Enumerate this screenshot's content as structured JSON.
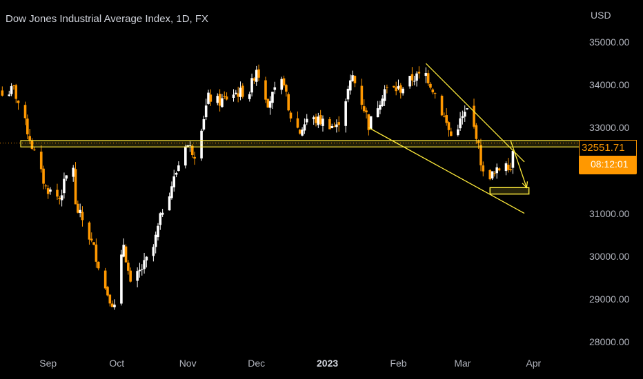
{
  "chart_data": {
    "type": "candlestick",
    "title": "Dow Jones Industrial Average Index, 1D, FX",
    "currency": "USD",
    "y_ticks": [
      "35000.00",
      "34000.00",
      "33000.00",
      "31000.00",
      "30000.00",
      "29000.00",
      "28000.00"
    ],
    "x_ticks": [
      {
        "label": "Sep",
        "date": "2022-09-01",
        "bold": false
      },
      {
        "label": "Oct",
        "date": "2022-10-01",
        "bold": false
      },
      {
        "label": "Nov",
        "date": "2022-11-01",
        "bold": false
      },
      {
        "label": "Dec",
        "date": "2022-12-01",
        "bold": false
      },
      {
        "label": "2023",
        "date": "2023-01-01",
        "bold": true
      },
      {
        "label": "Feb",
        "date": "2023-02-01",
        "bold": false
      },
      {
        "label": "Mar",
        "date": "2023-03-01",
        "bold": false
      },
      {
        "label": "Apr",
        "date": "2023-04-01",
        "bold": false
      }
    ],
    "ylim": [
      27700,
      35700
    ],
    "xlim": [
      "2022-08-11",
      "2023-04-22"
    ],
    "last_price": "32551.71",
    "countdown": "08:12:01",
    "closes": [
      {
        "date": "2022-08-12",
        "close": 33750
      },
      {
        "date": "2022-08-17",
        "close": 33900
      },
      {
        "date": "2022-08-22",
        "close": 33100
      },
      {
        "date": "2022-08-26",
        "close": 32400
      },
      {
        "date": "2022-08-31",
        "close": 31600
      },
      {
        "date": "2022-09-06",
        "close": 31350
      },
      {
        "date": "2022-09-09",
        "close": 31850
      },
      {
        "date": "2022-09-12",
        "close": 32100
      },
      {
        "date": "2022-09-13",
        "close": 31150
      },
      {
        "date": "2022-09-16",
        "close": 30850
      },
      {
        "date": "2022-09-21",
        "close": 30180
      },
      {
        "date": "2022-09-26",
        "close": 29250
      },
      {
        "date": "2022-09-30",
        "close": 28800
      },
      {
        "date": "2022-10-04",
        "close": 30300
      },
      {
        "date": "2022-10-07",
        "close": 29300
      },
      {
        "date": "2022-10-13",
        "close": 29800
      },
      {
        "date": "2022-10-17",
        "close": 30200
      },
      {
        "date": "2022-10-21",
        "close": 31100
      },
      {
        "date": "2022-10-26",
        "close": 31800
      },
      {
        "date": "2022-10-31",
        "close": 32650
      },
      {
        "date": "2022-11-04",
        "close": 32400
      },
      {
        "date": "2022-11-10",
        "close": 33700
      },
      {
        "date": "2022-11-15",
        "close": 33600
      },
      {
        "date": "2022-11-21",
        "close": 33800
      },
      {
        "date": "2022-11-28",
        "close": 33850
      },
      {
        "date": "2022-12-01",
        "close": 34400
      },
      {
        "date": "2022-12-06",
        "close": 33600
      },
      {
        "date": "2022-12-13",
        "close": 34100
      },
      {
        "date": "2022-12-15",
        "close": 33350
      },
      {
        "date": "2022-12-20",
        "close": 32900
      },
      {
        "date": "2022-12-23",
        "close": 33200
      },
      {
        "date": "2022-12-30",
        "close": 33150
      },
      {
        "date": "2023-01-05",
        "close": 33000
      },
      {
        "date": "2023-01-12",
        "close": 34200
      },
      {
        "date": "2023-01-18",
        "close": 33300
      },
      {
        "date": "2023-01-19",
        "close": 33050
      },
      {
        "date": "2023-01-26",
        "close": 33900
      },
      {
        "date": "2023-02-02",
        "close": 33900
      },
      {
        "date": "2023-02-07",
        "close": 34150
      },
      {
        "date": "2023-02-13",
        "close": 34250
      },
      {
        "date": "2023-02-17",
        "close": 33800
      },
      {
        "date": "2023-02-24",
        "close": 32800
      },
      {
        "date": "2023-03-03",
        "close": 33400
      },
      {
        "date": "2023-03-07",
        "close": 32850
      },
      {
        "date": "2023-03-10",
        "close": 31900
      },
      {
        "date": "2023-03-15",
        "close": 31900
      },
      {
        "date": "2023-03-20",
        "close": 32250
      },
      {
        "date": "2023-03-22",
        "close": 32030
      },
      {
        "date": "2023-03-23",
        "close": 32550
      }
    ],
    "drawings": {
      "support_band": {
        "from": 32550,
        "to": 32700,
        "color": "#ffeb3b"
      },
      "target_box": {
        "x_from": "2023-03-13",
        "x_to": "2023-03-30",
        "from": 31450,
        "to": 31600,
        "color": "#ffeb3b"
      },
      "upper_trendline": {
        "x1": "2023-02-13",
        "y1": 34500,
        "x2": "2023-03-28",
        "y2": 32200
      },
      "lower_trendline": {
        "x1": "2023-01-19",
        "y1": 33000,
        "x2": "2023-03-28",
        "y2": 31000
      },
      "arrow": {
        "x1": "2023-03-22",
        "y1": 32700,
        "x2": "2023-03-29",
        "y2": 31600
      }
    },
    "colors": {
      "up": "#ffffff",
      "down": "#ff9800",
      "lines": "#ffeb3b",
      "axis_text": "#b2b5be"
    },
    "grid": false,
    "legend": "none"
  }
}
